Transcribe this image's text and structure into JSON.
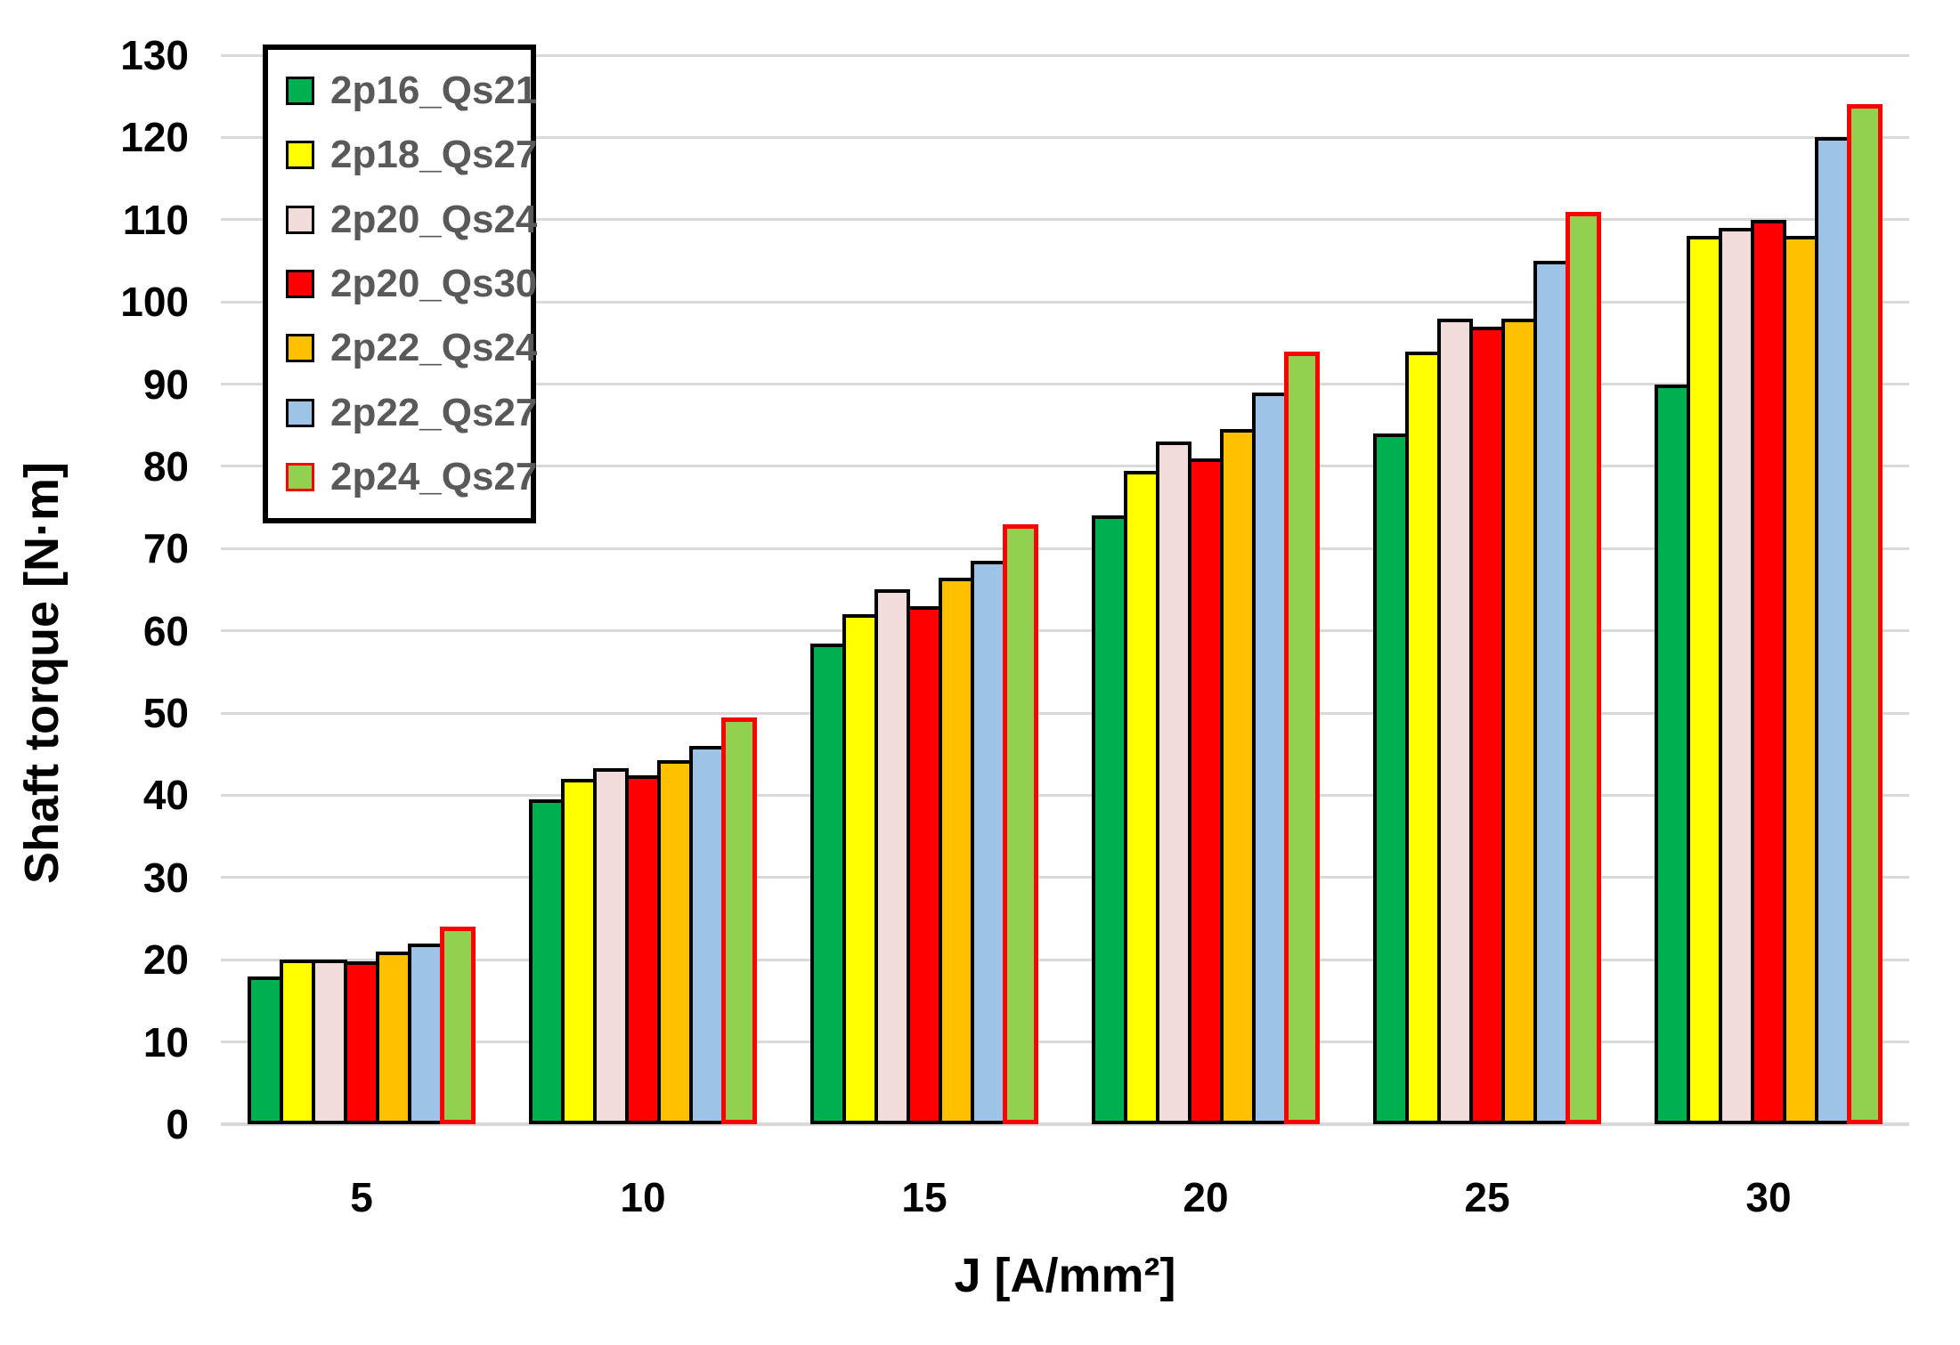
{
  "chart_data": {
    "type": "bar",
    "title": "",
    "xlabel": "J [A/mm²]",
    "ylabel": "Shaft torque [N·m]",
    "categories": [
      "5",
      "10",
      "15",
      "20",
      "25",
      "30"
    ],
    "series": [
      {
        "name": "2p16_Qs21",
        "color": "#00B050",
        "border": "#000000",
        "values": [
          18,
          39.5,
          58.5,
          74,
          84,
          90
        ]
      },
      {
        "name": "2p18_Qs27",
        "color": "#FFFF00",
        "border": "#000000",
        "values": [
          20,
          42,
          62,
          79.5,
          94,
          108
        ]
      },
      {
        "name": "2p20_Qs24",
        "color": "#F2DCDB",
        "border": "#000000",
        "values": [
          20,
          43.3,
          65,
          83,
          98,
          109
        ]
      },
      {
        "name": "2p20_Qs30",
        "color": "#FF0000",
        "border": "#000000",
        "values": [
          19.8,
          42.4,
          63,
          81,
          97,
          110
        ]
      },
      {
        "name": "2p22_Qs24",
        "color": "#FFC000",
        "border": "#000000",
        "values": [
          21,
          44.3,
          66.5,
          84.5,
          98,
          108
        ]
      },
      {
        "name": "2p22_Qs27",
        "color": "#9DC3E6",
        "border": "#000000",
        "values": [
          22,
          46,
          68.5,
          89,
          105,
          120
        ]
      },
      {
        "name": "2p24_Qs27",
        "color": "#92D050",
        "border": "#FF0000",
        "values": [
          24,
          49.5,
          73,
          94,
          111,
          124
        ]
      }
    ],
    "ylim": [
      0,
      130
    ],
    "ytick_step": 10,
    "grid": true,
    "legend_position": "top-left",
    "gridline_color": "#D9D9D9",
    "axis_text_color": "#000000",
    "legend_text_color": "#595959"
  }
}
